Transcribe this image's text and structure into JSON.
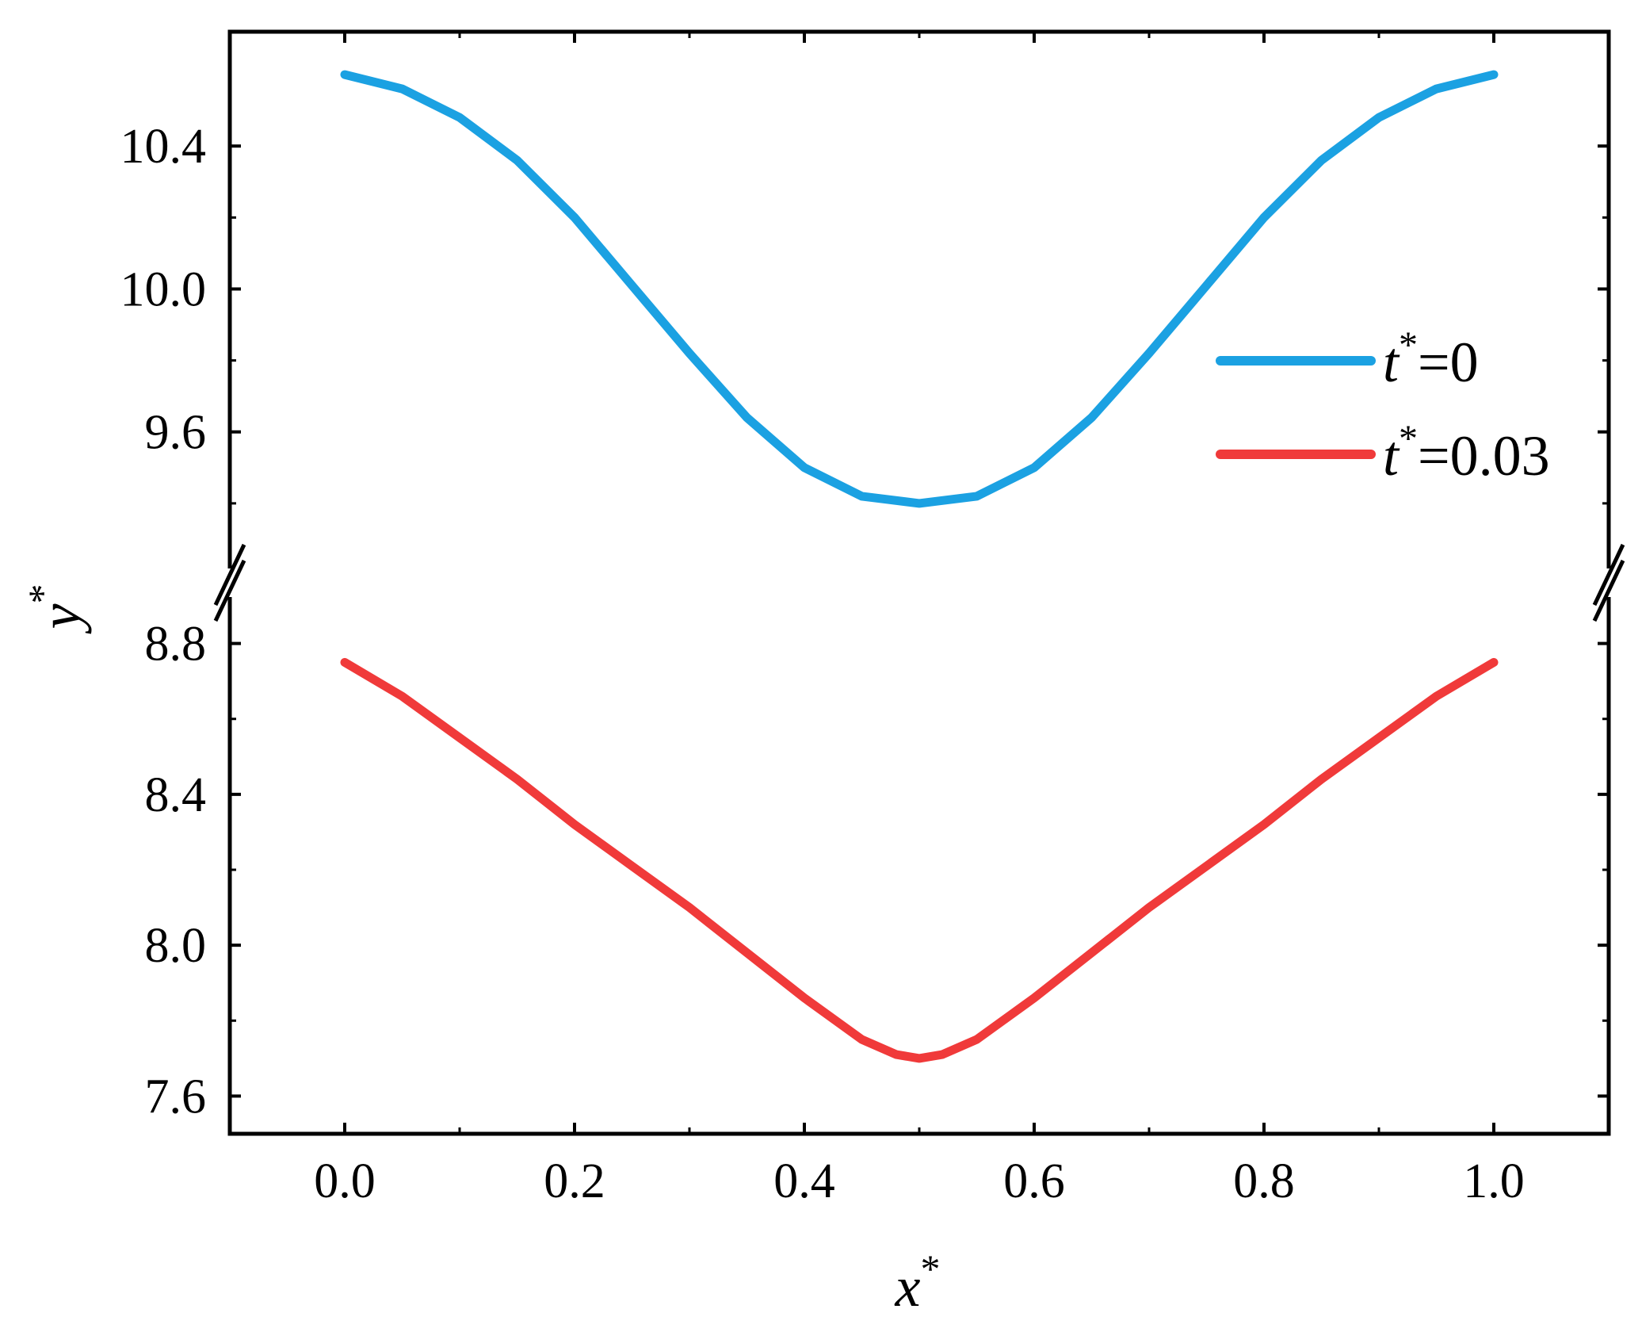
{
  "chart_data": {
    "type": "line",
    "xlabel": {
      "base": "x",
      "sup": "*"
    },
    "ylabel": {
      "base": "y",
      "sup": "*"
    },
    "xlim": [
      -0.1,
      1.1
    ],
    "x_ticks": [
      "0.0",
      "0.2",
      "0.4",
      "0.6",
      "0.8",
      "1.0"
    ],
    "y_axis_break": {
      "lower_range": [
        7.5,
        8.94
      ],
      "upper_range": [
        9.2,
        10.72
      ]
    },
    "y_ticks_lower": [
      "7.6",
      "8.0",
      "8.4",
      "8.8"
    ],
    "y_ticks_upper": [
      "9.6",
      "10.0",
      "10.4"
    ],
    "grid": false,
    "legend_position": "right",
    "series": [
      {
        "name": {
          "base": "t",
          "sup": "*",
          "suffix": "=0"
        },
        "color": "#1BA1E2",
        "x": [
          0.0,
          0.05,
          0.1,
          0.15,
          0.2,
          0.25,
          0.3,
          0.35,
          0.4,
          0.45,
          0.5,
          0.55,
          0.6,
          0.65,
          0.7,
          0.75,
          0.8,
          0.85,
          0.9,
          0.95,
          1.0
        ],
        "y": [
          10.6,
          10.56,
          10.48,
          10.36,
          10.2,
          10.01,
          9.82,
          9.64,
          9.5,
          9.42,
          9.4,
          9.42,
          9.5,
          9.64,
          9.82,
          10.01,
          10.2,
          10.36,
          10.48,
          10.56,
          10.6
        ]
      },
      {
        "name": {
          "base": "t",
          "sup": "*",
          "suffix": "=0.03"
        },
        "color": "#F03A3A",
        "x": [
          0.0,
          0.05,
          0.1,
          0.15,
          0.2,
          0.25,
          0.3,
          0.35,
          0.4,
          0.45,
          0.48,
          0.5,
          0.52,
          0.55,
          0.6,
          0.65,
          0.7,
          0.75,
          0.8,
          0.85,
          0.9,
          0.95,
          1.0
        ],
        "y": [
          8.75,
          8.66,
          8.55,
          8.44,
          8.32,
          8.21,
          8.1,
          7.98,
          7.86,
          7.75,
          7.71,
          7.7,
          7.71,
          7.75,
          7.86,
          7.98,
          8.1,
          8.21,
          8.32,
          8.44,
          8.55,
          8.66,
          8.75
        ]
      }
    ]
  }
}
